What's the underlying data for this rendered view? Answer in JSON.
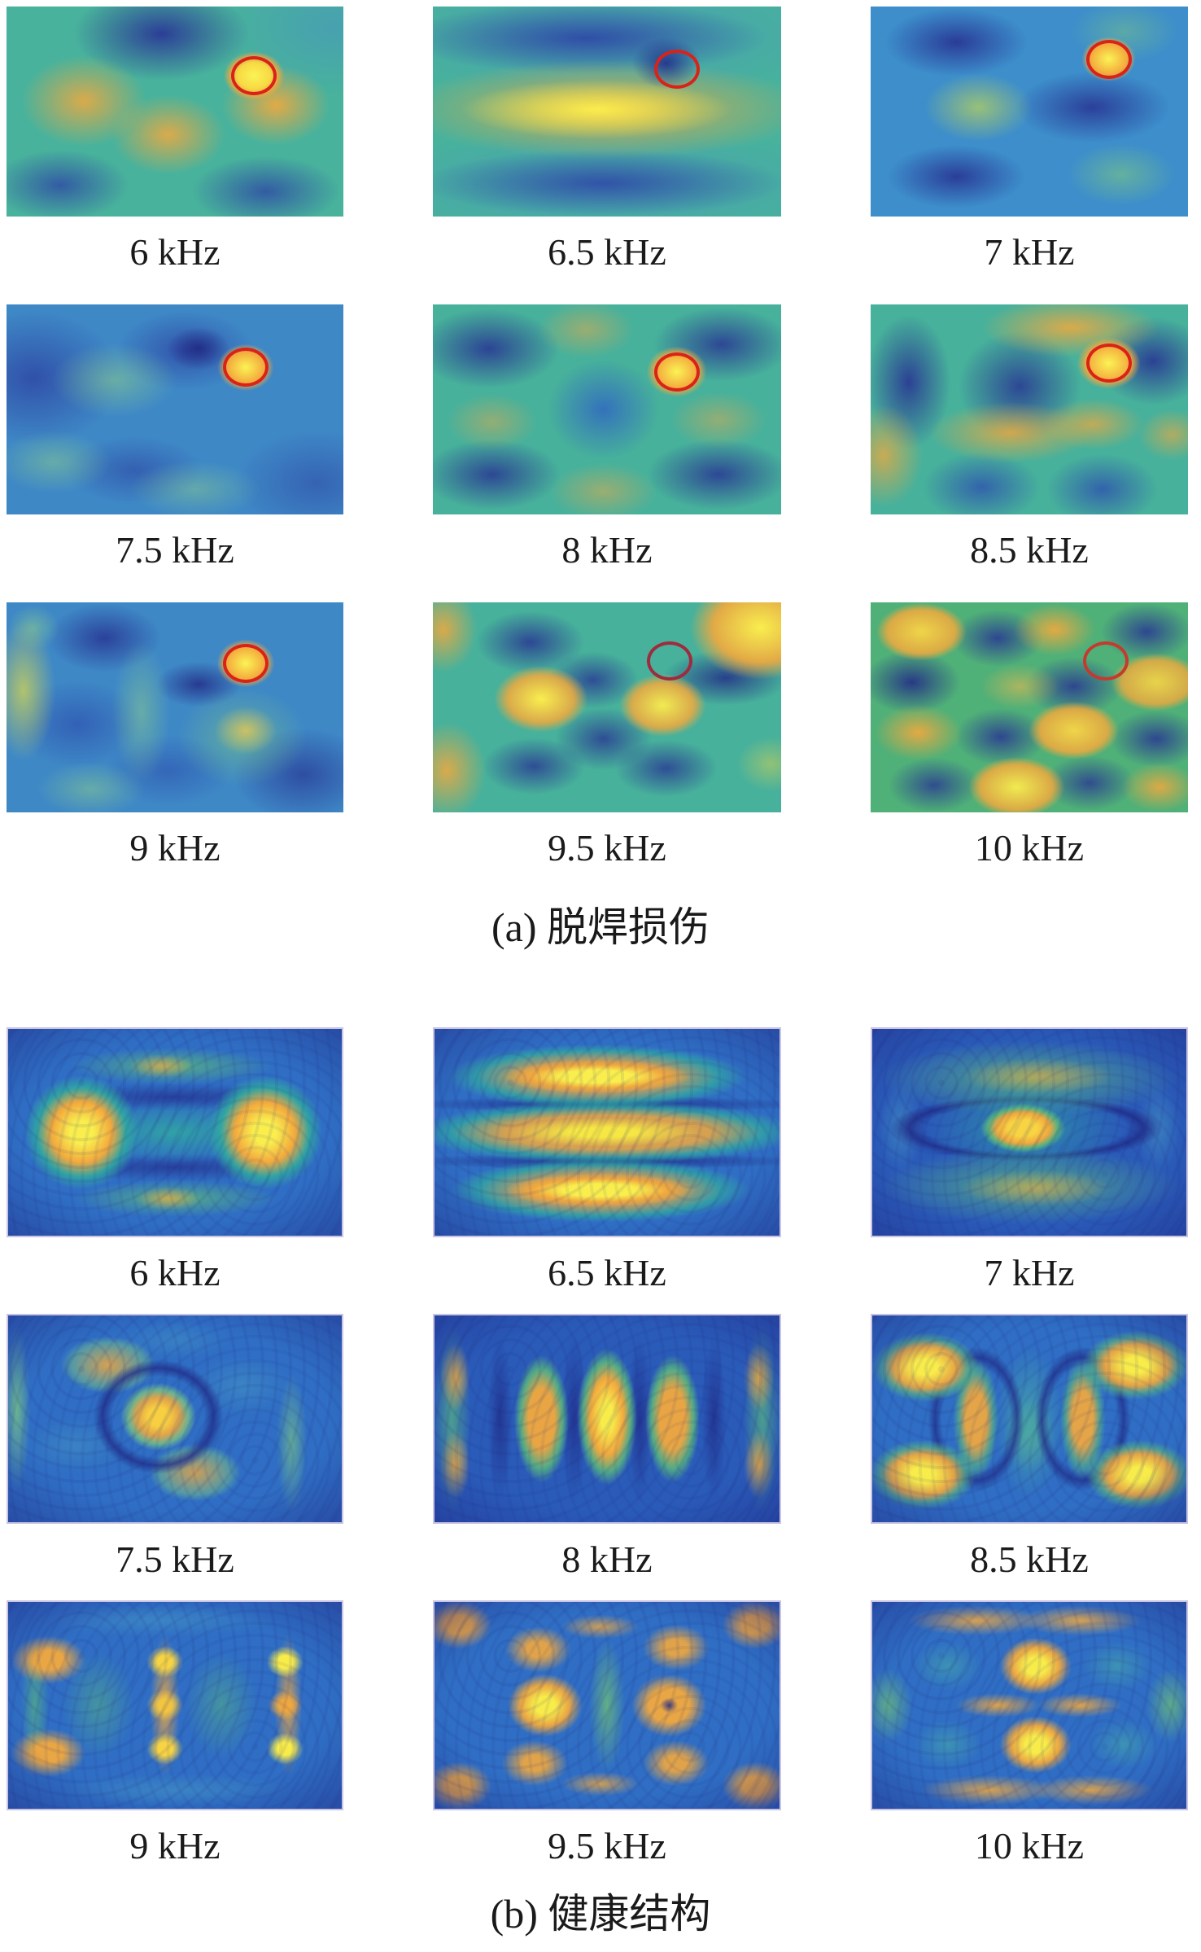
{
  "panels": [
    {
      "caption": "(a) 脱焊损伤",
      "cells": [
        {
          "label": "6 kHz"
        },
        {
          "label": "6.5 kHz"
        },
        {
          "label": "7 kHz"
        },
        {
          "label": "7.5 kHz"
        },
        {
          "label": "8 kHz"
        },
        {
          "label": "8.5 kHz"
        },
        {
          "label": "9 kHz"
        },
        {
          "label": "9.5 kHz"
        },
        {
          "label": "10 kHz"
        }
      ]
    },
    {
      "caption": "(b) 健康结构",
      "cells": [
        {
          "label": "6 kHz"
        },
        {
          "label": "6.5 kHz"
        },
        {
          "label": "7 kHz"
        },
        {
          "label": "7.5 kHz"
        },
        {
          "label": "8 kHz"
        },
        {
          "label": "8.5 kHz"
        },
        {
          "label": "9 kHz"
        },
        {
          "label": "9.5 kHz"
        },
        {
          "label": "10 kHz"
        }
      ]
    }
  ],
  "colors": {
    "damage_circle_red": "#da2318",
    "damage_circle_dark_red": "#9e2b3e",
    "colormap_low_navy": "#2b3a9b",
    "colormap_blue": "#3e88c6",
    "colormap_teal_green": "#47b19b",
    "colormap_orange": "#f3a93d",
    "colormap_high_yellow": "#f9ee4e",
    "panel_b_border": "#c9c3e4"
  },
  "chart_data": {
    "type": "heatmap",
    "layout": "two panels, each a 3x3 grid of rectangular wavefield amplitude maps with frequency label under each map",
    "colormap": "jet-like (dark navy -> blue -> teal/green -> orange -> yellow)",
    "frequencies_kHz": [
      6,
      6.5,
      7,
      7.5,
      8,
      8.5,
      9,
      9.5,
      10
    ],
    "panels": [
      {
        "caption": "(a) 脱焊损伤",
        "subplots": [
          {
            "label": "6 kHz",
            "marker": {
              "shape": "red ellipse",
              "x_frac": 0.74,
              "y_frac": 0.33,
              "encloses_hotspot": true
            },
            "pattern": "teal field; navy lobe top-centre and navy lobes bottom-left/bottom-right; orange arc across middle with bright yellow hotspot upper-right"
          },
          {
            "label": "6.5 kHz",
            "marker": {
              "shape": "red ellipse",
              "x_frac": 0.7,
              "y_frac": 0.3,
              "encloses_hotspot": false
            },
            "pattern": "teal field; blue band at top, broad yellow-orange horizontal band through middle, blue band at bottom; open circle at top of band"
          },
          {
            "label": "7 kHz",
            "marker": {
              "shape": "red ellipse",
              "x_frac": 0.75,
              "y_frac": 0.25,
              "encloses_hotspot": true
            },
            "pattern": "light-blue field; navy lobes top-left, bottom-left and mid-right; faint green centre-left and bottom-right; bright yellow hotspot upper-right"
          },
          {
            "label": "7.5 kHz",
            "marker": {
              "shape": "red ellipse",
              "x_frac": 0.71,
              "y_frac": 0.3,
              "encloses_hotspot": true
            },
            "pattern": "blue field with soft green patches and darker blue smudges; bright yellow hotspot upper-right"
          },
          {
            "label": "8 kHz",
            "marker": {
              "shape": "red ellipse",
              "x_frac": 0.7,
              "y_frac": 0.32,
              "encloses_hotspot": true
            },
            "pattern": "teal field; four navy corner lobes and blue centre lobe; faint orange patches; bright yellow hotspot upper-right"
          },
          {
            "label": "8.5 kHz",
            "marker": {
              "shape": "red ellipse",
              "x_frac": 0.75,
              "y_frac": 0.28,
              "encloses_hotspot": true
            },
            "pattern": "teal field heavily mottled with orange; navy lobes left, centre and top-right; bright yellow hotspot upper-right"
          },
          {
            "label": "9 kHz",
            "marker": {
              "shape": "red ellipse",
              "x_frac": 0.71,
              "y_frac": 0.29,
              "encloses_hotspot": true
            },
            "pattern": "blue field; yellow-green strips along left edge and centre; green lobe right of centre; bright yellow hotspot upper-right"
          },
          {
            "label": "9.5 kHz",
            "marker": {
              "shape": "dark-red ellipse",
              "x_frac": 0.68,
              "y_frac": 0.28,
              "encloses_hotspot": false
            },
            "pattern": "teal field; orange lobes at left edge, centre-left, centre-right and bright yellow top-right corner; scattered navy lobes; open circle over blue area"
          },
          {
            "label": "10 kHz",
            "marker": {
              "shape": "red ellipse",
              "x_frac": 0.74,
              "y_frac": 0.28,
              "encloses_hotspot": false
            },
            "pattern": "green field; 4x4 checkerboard of orange/yellow and navy lobes; open circle upper-right"
          }
        ]
      },
      {
        "caption": "(b) 健康结构",
        "subplots": [
          {
            "label": "6 kHz",
            "marker": null,
            "pattern": "dark blue field; two large yellow-orange lobes left and right of centre joined by a teal bridge; dotted green bands top and bottom"
          },
          {
            "label": "6.5 kHz",
            "marker": null,
            "pattern": "three horizontal yellow-orange bands (top, middle, bottom) separated by thin navy lines"
          },
          {
            "label": "7 kHz",
            "marker": null,
            "pattern": "green arcs top and bottom; small bright orange spot at centre inside a dark lens-shaped outline"
          },
          {
            "label": "7.5 kHz",
            "marker": null,
            "pattern": "bright orange-yellow spot at centre surrounded by a dark ring; orange patches upper-left and lower-centre; dotted green columns at left and right edges"
          },
          {
            "label": "8 kHz",
            "marker": null,
            "pattern": "five vertical lobes: three teal ovals with orange cores (centre one brightest yellow) flanked by edge columns with orange patches"
          },
          {
            "label": "8.5 kHz",
            "marker": null,
            "pattern": "yellow-orange lobes in all four corners; two vertical orange bars mid-left and mid-right; teal central column"
          },
          {
            "label": "9 kHz",
            "marker": null,
            "pattern": "bracket-like motif: vertical yellow bar at centre, orange bracket shapes left and right, green E-shaped patches between"
          },
          {
            "label": "9.5 kHz",
            "marker": null,
            "pattern": "symmetric: orange lobes at corners and edge midpoints; two orange square lobes either side of a green central strip"
          },
          {
            "label": "10 kHz",
            "marker": null,
            "pattern": "wavy orange bands along top and bottom; two bright yellow lobes above and below centre; row of orange dashes across the middle"
          }
        ]
      }
    ]
  }
}
